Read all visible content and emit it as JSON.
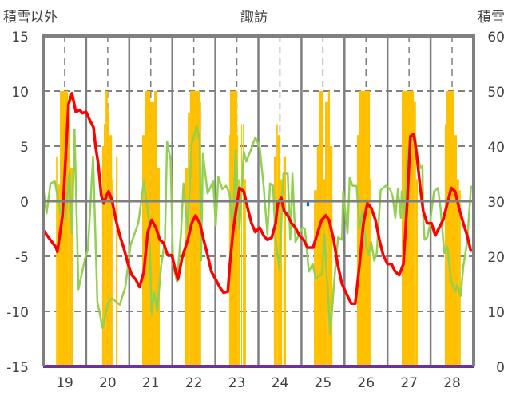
{
  "chart_data": {
    "type": "line",
    "title": "諏訪",
    "ylabel_left": "積雪以外",
    "ylabel_right": "積雪",
    "ylim_left": [
      -15,
      15
    ],
    "ylim_right": [
      0,
      60
    ],
    "xlim": [
      18.5,
      28.5
    ],
    "yticks_left": [
      "15",
      "10",
      "5",
      "0",
      "-5",
      "-10",
      "-15"
    ],
    "yticks_right": [
      "60",
      "50",
      "40",
      "30",
      "20",
      "10",
      "0"
    ],
    "xticks": [
      "19",
      "20",
      "21",
      "22",
      "23",
      "24",
      "25",
      "26",
      "27",
      "28"
    ],
    "grid": true,
    "colors": {
      "red": "#ff0000",
      "green": "#92d050",
      "bars": "#ffc000",
      "blue": "#0070c0",
      "purple": "#7030a0",
      "axis": "#808080"
    },
    "series": [
      {
        "name": "red",
        "axis": "left",
        "points": [
          [
            18.5,
            -2.6
          ],
          [
            18.61,
            -3.2
          ],
          [
            18.8,
            -4.2
          ],
          [
            18.83,
            -4.6
          ],
          [
            18.95,
            -1.3
          ],
          [
            19.04,
            5.2
          ],
          [
            19.09,
            8.8
          ],
          [
            19.17,
            9.8
          ],
          [
            19.26,
            8.1
          ],
          [
            19.35,
            8.3
          ],
          [
            19.41,
            8.0
          ],
          [
            19.5,
            8.1
          ],
          [
            19.58,
            7.4
          ],
          [
            19.67,
            6.7
          ],
          [
            19.72,
            4.9
          ],
          [
            19.78,
            3.4
          ],
          [
            19.85,
            0.5
          ],
          [
            19.91,
            -0.2
          ],
          [
            19.97,
            0.5
          ],
          [
            20.02,
            0.9
          ],
          [
            20.1,
            0.1
          ],
          [
            20.19,
            -1.7
          ],
          [
            20.28,
            -3.1
          ],
          [
            20.37,
            -4.2
          ],
          [
            20.47,
            -5.7
          ],
          [
            20.56,
            -6.7
          ],
          [
            20.65,
            -7.1
          ],
          [
            20.74,
            -7.8
          ],
          [
            20.84,
            -6.4
          ],
          [
            20.93,
            -2.8
          ],
          [
            21.02,
            -1.7
          ],
          [
            21.12,
            -2.4
          ],
          [
            21.21,
            -3.5
          ],
          [
            21.3,
            -3.8
          ],
          [
            21.39,
            -4.9
          ],
          [
            21.49,
            -4.9
          ],
          [
            21.58,
            -6.4
          ],
          [
            21.63,
            -7.1
          ],
          [
            21.73,
            -5.1
          ],
          [
            21.86,
            -3.5
          ],
          [
            21.95,
            -2.0
          ],
          [
            22.04,
            -1.3
          ],
          [
            22.14,
            -2.0
          ],
          [
            22.23,
            -3.5
          ],
          [
            22.32,
            -4.9
          ],
          [
            22.41,
            -6.4
          ],
          [
            22.51,
            -7.1
          ],
          [
            22.6,
            -7.8
          ],
          [
            22.69,
            -8.3
          ],
          [
            22.79,
            -8.2
          ],
          [
            22.84,
            -5.7
          ],
          [
            22.91,
            -2.8
          ],
          [
            22.99,
            -0.6
          ],
          [
            23.06,
            1.2
          ],
          [
            23.16,
            0.9
          ],
          [
            23.25,
            -0.6
          ],
          [
            23.34,
            -2.0
          ],
          [
            23.43,
            -2.8
          ],
          [
            23.53,
            -2.4
          ],
          [
            23.62,
            -3.1
          ],
          [
            23.71,
            -3.5
          ],
          [
            23.81,
            -3.3
          ],
          [
            23.9,
            -2.0
          ],
          [
            23.95,
            -0.2
          ],
          [
            24.03,
            0.3
          ],
          [
            24.1,
            -0.9
          ],
          [
            24.18,
            -1.3
          ],
          [
            24.27,
            -2.0
          ],
          [
            24.36,
            -2.4
          ],
          [
            24.45,
            -3.1
          ],
          [
            24.55,
            -3.5
          ],
          [
            24.64,
            -4.2
          ],
          [
            24.77,
            -4.2
          ],
          [
            24.88,
            -2.8
          ],
          [
            24.97,
            -1.7
          ],
          [
            25.07,
            -1.3
          ],
          [
            25.14,
            -1.7
          ],
          [
            25.25,
            -3.5
          ],
          [
            25.34,
            -5.7
          ],
          [
            25.44,
            -7.5
          ],
          [
            25.57,
            -8.6
          ],
          [
            25.66,
            -9.3
          ],
          [
            25.75,
            -9.3
          ],
          [
            25.85,
            -5.7
          ],
          [
            25.94,
            -2.0
          ],
          [
            26.03,
            -0.2
          ],
          [
            26.12,
            -0.6
          ],
          [
            26.22,
            -1.7
          ],
          [
            26.31,
            -3.5
          ],
          [
            26.4,
            -4.9
          ],
          [
            26.5,
            -5.7
          ],
          [
            26.59,
            -5.7
          ],
          [
            26.68,
            -6.4
          ],
          [
            26.77,
            -6.7
          ],
          [
            26.87,
            -5.7
          ],
          [
            26.96,
            0.1
          ],
          [
            27.03,
            5.9
          ],
          [
            27.11,
            6.1
          ],
          [
            27.18,
            4.1
          ],
          [
            27.26,
            1.2
          ],
          [
            27.33,
            -0.9
          ],
          [
            27.42,
            -2.0
          ],
          [
            27.52,
            -2.0
          ],
          [
            27.61,
            -3.1
          ],
          [
            27.7,
            -2.4
          ],
          [
            27.79,
            -1.7
          ],
          [
            27.89,
            -0.2
          ],
          [
            27.98,
            1.2
          ],
          [
            28.07,
            0.9
          ],
          [
            28.16,
            -0.6
          ],
          [
            28.26,
            -2.0
          ],
          [
            28.35,
            -3.1
          ],
          [
            28.44,
            -4.6
          ]
        ]
      },
      {
        "name": "green",
        "axis": "left",
        "points": [
          [
            18.49,
            1.6
          ],
          [
            18.58,
            -1.1
          ],
          [
            18.67,
            1.6
          ],
          [
            18.77,
            1.8
          ],
          [
            18.92,
            -1.3
          ],
          [
            19.01,
            -1.7
          ],
          [
            19.11,
            2.7
          ],
          [
            19.17,
            -2.9
          ],
          [
            19.23,
            6.5
          ],
          [
            19.32,
            -8.0
          ],
          [
            19.48,
            -5.1
          ],
          [
            19.54,
            -4.4
          ],
          [
            19.66,
            4.0
          ],
          [
            19.76,
            -9.1
          ],
          [
            19.88,
            -11.5
          ],
          [
            20.0,
            -9.3
          ],
          [
            20.1,
            -8.8
          ],
          [
            20.28,
            -9.4
          ],
          [
            20.41,
            -7.8
          ],
          [
            20.53,
            -4.0
          ],
          [
            20.71,
            -2.0
          ],
          [
            20.84,
            1.8
          ],
          [
            20.96,
            -1.8
          ],
          [
            21.02,
            -10.2
          ],
          [
            21.08,
            -8.3
          ],
          [
            21.15,
            -10.0
          ],
          [
            21.24,
            -5.9
          ],
          [
            21.33,
            -3.5
          ],
          [
            21.38,
            5.4
          ],
          [
            21.46,
            3.8
          ],
          [
            21.52,
            -5.9
          ],
          [
            21.61,
            -7.3
          ],
          [
            21.7,
            -3.0
          ],
          [
            21.76,
            1.6
          ],
          [
            21.86,
            -2.8
          ],
          [
            21.95,
            5.2
          ],
          [
            22.07,
            6.8
          ],
          [
            22.14,
            5.4
          ],
          [
            22.17,
            -5.4
          ],
          [
            22.21,
            4.3
          ],
          [
            22.32,
            0.7
          ],
          [
            22.45,
            1.8
          ],
          [
            22.51,
            -2.2
          ],
          [
            22.57,
            2.2
          ],
          [
            22.66,
            1.1
          ],
          [
            22.75,
            1.4
          ],
          [
            22.83,
            0.7
          ],
          [
            22.91,
            -3.0
          ],
          [
            22.97,
            4.7
          ],
          [
            23.06,
            -2.5
          ],
          [
            23.16,
            4.5
          ],
          [
            23.22,
            3.6
          ],
          [
            23.31,
            4.5
          ],
          [
            23.43,
            5.8
          ],
          [
            23.53,
            4.9
          ],
          [
            23.62,
            1.4
          ],
          [
            23.71,
            -3.0
          ],
          [
            23.77,
            1.6
          ],
          [
            23.84,
            1.4
          ],
          [
            23.9,
            -3.5
          ],
          [
            23.99,
            -6.2
          ],
          [
            24.08,
            2.5
          ],
          [
            24.18,
            2.5
          ],
          [
            24.24,
            -3.5
          ],
          [
            24.29,
            2.5
          ],
          [
            24.36,
            -3.7
          ],
          [
            24.52,
            -2.4
          ],
          [
            24.58,
            -2.5
          ],
          [
            24.67,
            -6.4
          ],
          [
            24.76,
            -5.7
          ],
          [
            24.83,
            -7.0
          ],
          [
            24.98,
            -6.6
          ],
          [
            25.03,
            -3.0
          ],
          [
            25.1,
            -7.3
          ],
          [
            25.17,
            -12.0
          ],
          [
            25.26,
            -7.3
          ],
          [
            25.35,
            -3.3
          ],
          [
            25.44,
            -3.5
          ],
          [
            25.47,
            0.9
          ],
          [
            25.57,
            -2.9
          ],
          [
            25.62,
            2.1
          ],
          [
            25.69,
            1.4
          ],
          [
            25.78,
            1.4
          ],
          [
            25.85,
            -2.5
          ],
          [
            25.92,
            -0.8
          ],
          [
            26.0,
            -4.0
          ],
          [
            26.06,
            -4.9
          ],
          [
            26.12,
            -3.7
          ],
          [
            26.19,
            -5.4
          ],
          [
            26.25,
            -4.7
          ],
          [
            26.34,
            1.0
          ],
          [
            26.46,
            1.4
          ],
          [
            26.56,
            1.1
          ],
          [
            26.62,
            0.4
          ],
          [
            26.68,
            -1.5
          ],
          [
            26.74,
            1.1
          ],
          [
            26.81,
            -1.5
          ],
          [
            26.83,
            0.9
          ],
          [
            26.9,
            -1.5
          ],
          [
            26.96,
            4.9
          ],
          [
            27.02,
            4.5
          ],
          [
            27.08,
            5.8
          ],
          [
            27.14,
            5.9
          ],
          [
            27.2,
            4.0
          ],
          [
            27.27,
            3.0
          ],
          [
            27.31,
            3.2
          ],
          [
            27.33,
            -1.5
          ],
          [
            27.36,
            -3.5
          ],
          [
            27.42,
            -3.3
          ],
          [
            27.48,
            -2.2
          ],
          [
            27.58,
            0.9
          ],
          [
            27.67,
            1.2
          ],
          [
            27.73,
            -0.6
          ],
          [
            27.82,
            -4.7
          ],
          [
            27.89,
            -4.1
          ],
          [
            27.98,
            -7.3
          ],
          [
            28.07,
            -8.2
          ],
          [
            28.12,
            -7.6
          ],
          [
            28.2,
            -8.6
          ],
          [
            28.26,
            -5.9
          ],
          [
            28.35,
            -3.7
          ],
          [
            28.44,
            1.4
          ]
        ]
      },
      {
        "name": "purple",
        "axis": "left",
        "points": [
          [
            18.5,
            -15
          ],
          [
            28.5,
            -15
          ]
        ]
      }
    ],
    "bars": {
      "name": "snow-depth",
      "axis": "right",
      "segments": [
        [
          18.8,
          18.83,
          38
        ],
        [
          18.83,
          18.89,
          33
        ],
        [
          18.89,
          19.08,
          50
        ],
        [
          19.08,
          19.13,
          47
        ],
        [
          19.13,
          19.2,
          36
        ],
        [
          19.87,
          19.91,
          40
        ],
        [
          19.91,
          19.95,
          44
        ],
        [
          19.95,
          20.0,
          50
        ],
        [
          20.0,
          20.04,
          47
        ],
        [
          20.04,
          20.1,
          42
        ],
        [
          20.1,
          20.13,
          34
        ],
        [
          20.19,
          20.23,
          38
        ],
        [
          20.8,
          20.86,
          42
        ],
        [
          20.86,
          20.99,
          50
        ],
        [
          20.99,
          21.08,
          48
        ],
        [
          21.08,
          21.15,
          50
        ],
        [
          21.15,
          21.21,
          36
        ],
        [
          21.8,
          21.86,
          36
        ],
        [
          21.86,
          21.91,
          46
        ],
        [
          21.91,
          22.14,
          50
        ],
        [
          22.14,
          22.17,
          48
        ],
        [
          22.82,
          22.84,
          42
        ],
        [
          22.84,
          23.01,
          50
        ],
        [
          23.01,
          23.03,
          42
        ],
        [
          23.03,
          23.08,
          34
        ],
        [
          23.1,
          23.12,
          44
        ],
        [
          23.14,
          23.17,
          44
        ],
        [
          23.17,
          23.21,
          34
        ],
        [
          23.86,
          23.92,
          38
        ],
        [
          23.92,
          23.95,
          44
        ],
        [
          23.95,
          24.01,
          42
        ],
        [
          24.01,
          24.05,
          34
        ],
        [
          24.08,
          24.14,
          38
        ],
        [
          24.79,
          24.86,
          32
        ],
        [
          24.86,
          24.92,
          40
        ],
        [
          24.92,
          25.01,
          50
        ],
        [
          25.01,
          25.05,
          34
        ],
        [
          25.05,
          25.12,
          48
        ],
        [
          25.12,
          25.16,
          50
        ],
        [
          25.16,
          25.22,
          40
        ],
        [
          25.79,
          25.83,
          42
        ],
        [
          25.83,
          26.09,
          50
        ],
        [
          26.09,
          26.12,
          34
        ],
        [
          26.83,
          27.11,
          50
        ],
        [
          27.11,
          27.16,
          48
        ],
        [
          27.16,
          27.2,
          34
        ],
        [
          27.83,
          27.87,
          44
        ],
        [
          27.87,
          28.05,
          50
        ],
        [
          28.05,
          28.11,
          42
        ],
        [
          28.11,
          28.16,
          34
        ],
        [
          28.16,
          28.2,
          32
        ]
      ]
    },
    "blue_marks": [
      [
        24.62,
        24.68,
        -0.3
      ]
    ]
  }
}
